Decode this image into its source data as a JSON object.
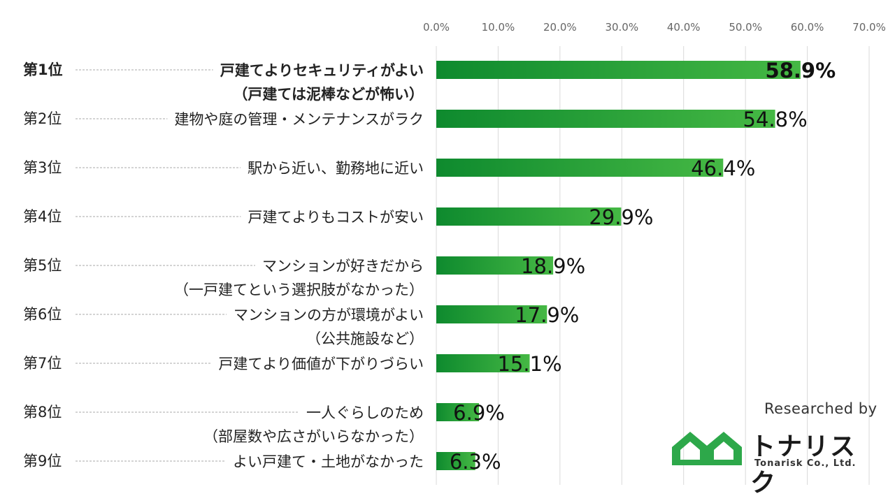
{
  "chart_data": {
    "type": "bar",
    "orientation": "horizontal",
    "ranks": [
      "第1位",
      "第2位",
      "第3位",
      "第4位",
      "第5位",
      "第6位",
      "第7位",
      "第8位",
      "第9位"
    ],
    "categories": [
      [
        "戸建てよりセキュリティがよい",
        "（戸建ては泥棒などが怖い）"
      ],
      [
        "建物や庭の管理・メンテナンスがラク"
      ],
      [
        "駅から近い、勤務地に近い"
      ],
      [
        "戸建てよりもコストが安い"
      ],
      [
        "マンションが好きだから",
        "（一戸建てという選択肢がなかった）"
      ],
      [
        "マンションの方が環境がよい",
        "（公共施設など）"
      ],
      [
        "戸建てより価値が下がりづらい"
      ],
      [
        "一人ぐらしのため",
        "（部屋数や広さがいらなかった）"
      ],
      [
        "よい戸建て・土地がなかった"
      ]
    ],
    "values": [
      58.9,
      54.8,
      46.4,
      29.9,
      18.9,
      17.9,
      15.1,
      6.9,
      6.3
    ],
    "value_labels": [
      "58.9%",
      "54.8%",
      "46.4%",
      "29.9%",
      "18.9%",
      "17.9%",
      "15.1%",
      "6.9%",
      "6.3%"
    ],
    "ticks": [
      "0.0%",
      "10.0%",
      "20.0%",
      "30.0%",
      "40.0%",
      "50.0%",
      "60.0%",
      "70.0%"
    ],
    "xlim": [
      0,
      70
    ],
    "highlight_index": 0,
    "colors": {
      "bar_start": "#0e8a2e",
      "bar_end": "#45b844",
      "grid": "#d9d9d9",
      "leader": "#aaaaaa"
    }
  },
  "credit": {
    "text": "Researched by",
    "logo_name": "トナリスク",
    "logo_sub": "Tonarisk Co., Ltd.",
    "logo_color": "#2da84a"
  }
}
